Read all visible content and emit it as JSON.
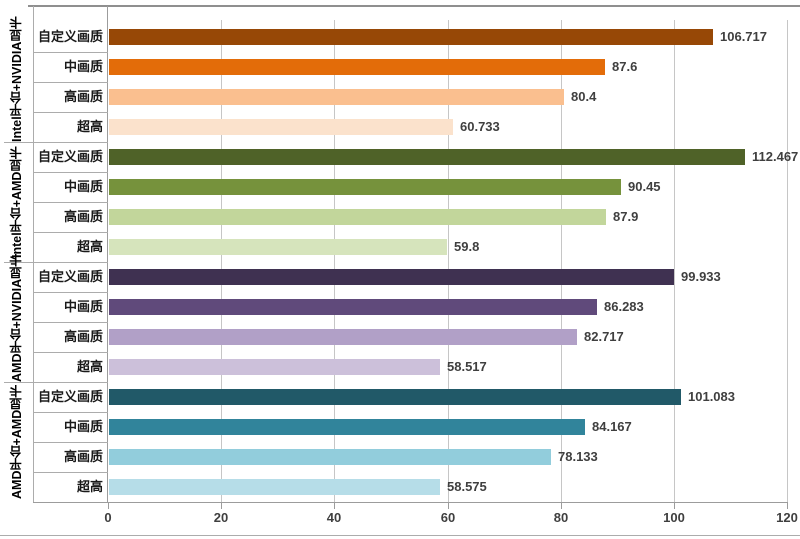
{
  "chart_data": {
    "type": "bar",
    "orientation": "horizontal",
    "title": "",
    "xlabel": "",
    "ylabel": "",
    "xlim": [
      0,
      120
    ],
    "x_ticks": [
      "0",
      "20",
      "40",
      "60",
      "80",
      "100",
      "120"
    ],
    "grid": true,
    "legend": "none",
    "categories_per_group": [
      "自定义画质",
      "中画质",
      "高画质",
      "超高"
    ],
    "groups": [
      {
        "name": "Intel平台+NVIDIA显卡",
        "values": [
          106.717,
          87.6,
          80.4,
          60.733
        ],
        "value_labels": [
          "106.717",
          "87.6",
          "80.4",
          "60.733"
        ],
        "bar_colors": [
          "#974806",
          "#E36C09",
          "#FABF8F",
          "#FBE2CC"
        ]
      },
      {
        "name": "Intel平台+AMD显卡",
        "values": [
          112.467,
          90.45,
          87.9,
          59.8
        ],
        "value_labels": [
          "112.467",
          "90.45",
          "87.9",
          "59.8"
        ],
        "bar_colors": [
          "#4F6228",
          "#76923C",
          "#C2D69B",
          "#D6E4BC"
        ]
      },
      {
        "name": "AMD平台+NVIDIA显卡",
        "values": [
          99.933,
          86.283,
          82.717,
          58.517
        ],
        "value_labels": [
          "99.933",
          "86.283",
          "82.717",
          "58.517"
        ],
        "bar_colors": [
          "#3F3151",
          "#604A7B",
          "#B1A0C7",
          "#CCC0DA"
        ]
      },
      {
        "name": "AMD平台+AMD显卡",
        "values": [
          101.083,
          84.167,
          78.133,
          58.575
        ],
        "value_labels": [
          "101.083",
          "84.167",
          "78.133",
          "58.575"
        ],
        "bar_colors": [
          "#215968",
          "#31849B",
          "#92CDDC",
          "#B6DDE8"
        ]
      }
    ],
    "colors": {
      "background": "#FFFFFF",
      "grid": "#C6C6C6",
      "axis": "#9C9C9C",
      "separator": "#ACACAC",
      "border": "#8F8F8F",
      "value_label": "#3F3F3F",
      "tick_label": "#3F3F3F",
      "category_label": "#1A1A1A",
      "group_label": "#000000"
    }
  }
}
